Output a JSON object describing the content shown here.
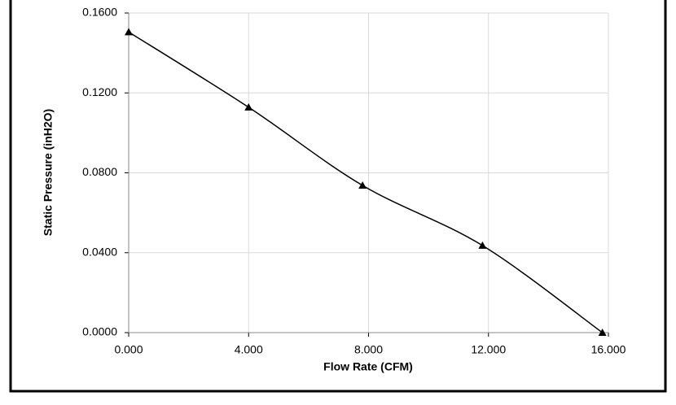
{
  "chart_data": {
    "type": "line",
    "x_label": "Flow Rate (CFM)",
    "y_label": "Static Pressure (inH2O)",
    "x": [
      0.0,
      4.0,
      7.8,
      11.8,
      15.8
    ],
    "series": [
      {
        "color": "#000000",
        "marker": "triangle",
        "values": [
          0.1505,
          0.1128,
          0.0737,
          0.0436,
          0.0
        ]
      }
    ],
    "xlim": [
      0,
      16
    ],
    "xticks": [
      {
        "value": 0,
        "label": "0.000"
      },
      {
        "value": 4,
        "label": "4.000"
      },
      {
        "value": 8,
        "label": "8.000"
      },
      {
        "value": 12,
        "label": "12.000"
      },
      {
        "value": 16,
        "label": "16.000"
      }
    ],
    "ylim": [
      0,
      0.16
    ],
    "yticks": [
      {
        "value": 0,
        "label": "0.0000"
      },
      {
        "value": 0.04,
        "label": "0.0400"
      },
      {
        "value": 0.08,
        "label": "0.0800"
      },
      {
        "value": 0.12,
        "label": "0.1200"
      },
      {
        "value": 0.16,
        "label": "0.1600"
      }
    ],
    "grid": true
  }
}
